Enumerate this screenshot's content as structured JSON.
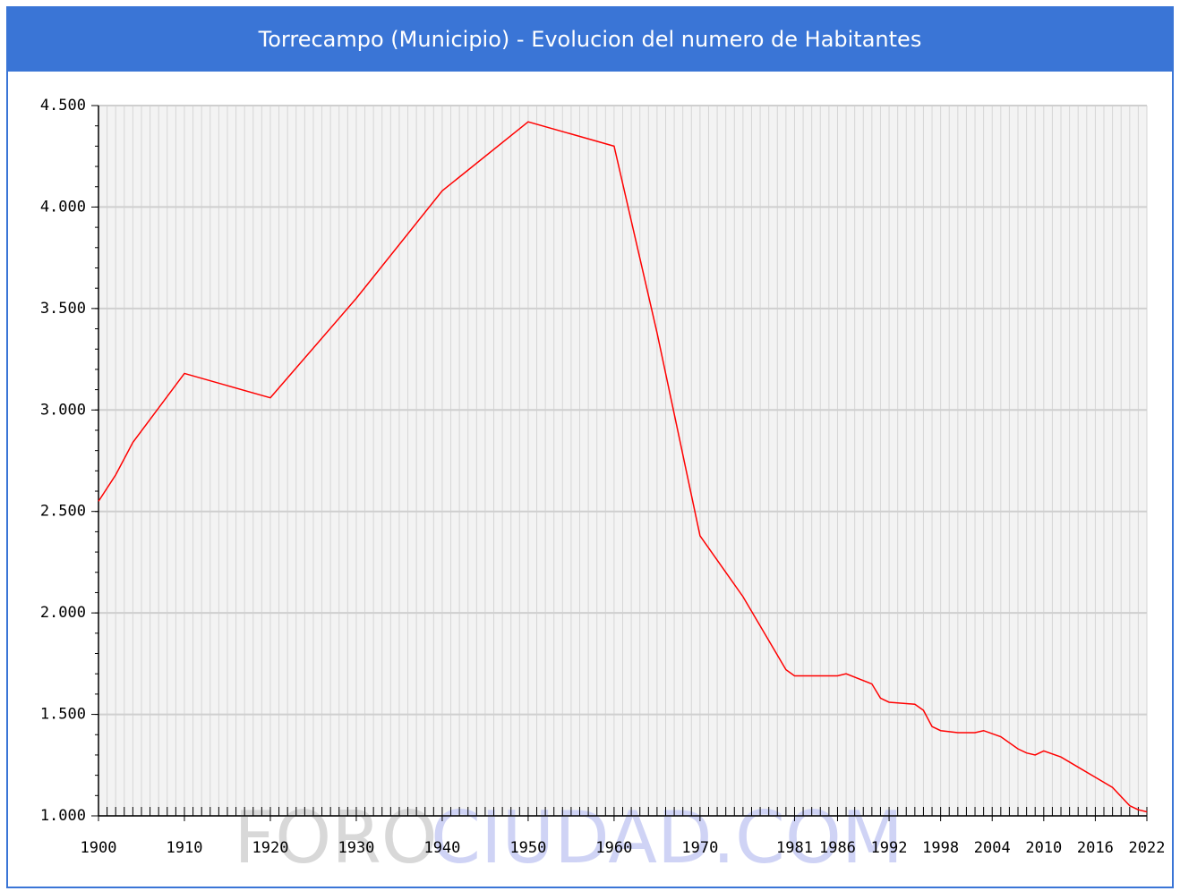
{
  "chart_data": {
    "type": "line",
    "title": "Torrecampo (Municipio) - Evolucion del numero de Habitantes",
    "watermark": [
      "FORO",
      "CIUDAD.COM"
    ],
    "x": [
      1900,
      1902,
      1904,
      1910,
      1915,
      1920,
      1930,
      1940,
      1950,
      1955,
      1960,
      1965,
      1970,
      1975,
      1980,
      1981,
      1986,
      1987,
      1990,
      1991,
      1992,
      1995,
      1996,
      1997,
      1998,
      2000,
      2002,
      2003,
      2005,
      2007,
      2008,
      2009,
      2010,
      2012,
      2014,
      2016,
      2018,
      2020,
      2021,
      2022
    ],
    "series": [
      {
        "name": "Habitantes",
        "color": "#ff0000",
        "values": [
          2550,
          2680,
          2840,
          3180,
          3120,
          3060,
          3550,
          4080,
          4420,
          4360,
          4300,
          3380,
          2380,
          2080,
          1720,
          1690,
          1690,
          1700,
          1650,
          1580,
          1560,
          1550,
          1520,
          1440,
          1420,
          1410,
          1410,
          1420,
          1390,
          1330,
          1310,
          1300,
          1320,
          1290,
          1240,
          1190,
          1140,
          1050,
          1030,
          1020
        ]
      }
    ],
    "xlim": [
      1900,
      2022
    ],
    "xticks": [
      1900,
      1910,
      1920,
      1930,
      1940,
      1950,
      1960,
      1970,
      1981,
      1986,
      1992,
      1998,
      2004,
      2010,
      2016,
      2022
    ],
    "ylim": [
      1000,
      4500
    ],
    "yticks": [
      {
        "value": 1000,
        "label": "1.000"
      },
      {
        "value": 1500,
        "label": "1.500"
      },
      {
        "value": 2000,
        "label": "2.000"
      },
      {
        "value": 2500,
        "label": "2.500"
      },
      {
        "value": 3000,
        "label": "3.000"
      },
      {
        "value": 3500,
        "label": "3.500"
      },
      {
        "value": 4000,
        "label": "4.000"
      },
      {
        "value": 4500,
        "label": "4.500"
      }
    ],
    "grid": true
  }
}
